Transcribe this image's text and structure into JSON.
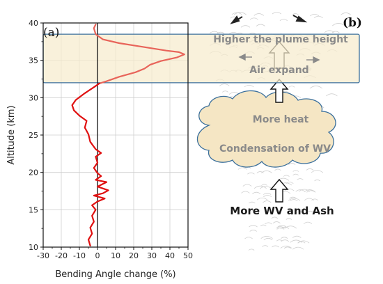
{
  "chart_data": {
    "type": "line",
    "panel_a_label": "(a)",
    "panel_b_label": "(b)",
    "xlabel": "Bending Angle change (%)",
    "ylabel": "Altitude (km)",
    "xlim": [
      -30,
      50
    ],
    "ylim": [
      10,
      40
    ],
    "xticks": [
      "-30",
      "-20",
      "-10",
      "0",
      "10",
      "20",
      "30",
      "40",
      "50"
    ],
    "yticks": [
      "10",
      "15",
      "20",
      "25",
      "30",
      "35",
      "40"
    ],
    "grid": true,
    "highlight_band_km": [
      32,
      38.5
    ],
    "series": [
      {
        "color": "#e8645a",
        "points": [
          [
            -1,
            39.8
          ],
          [
            -2,
            39.3
          ],
          [
            -1,
            38.5
          ],
          [
            3,
            37.8
          ],
          [
            12,
            37.3
          ],
          [
            25,
            36.8
          ],
          [
            38,
            36.3
          ],
          [
            45,
            36.1
          ],
          [
            48,
            35.8
          ],
          [
            44,
            35.4
          ],
          [
            35,
            34.9
          ],
          [
            29,
            34.4
          ],
          [
            26,
            33.9
          ],
          [
            21,
            33.4
          ],
          [
            12,
            32.8
          ],
          [
            5,
            32.2
          ],
          [
            1,
            31.9
          ]
        ]
      },
      {
        "color": "#e01010",
        "points": [
          [
            1,
            31.9
          ],
          [
            -2,
            31.4
          ],
          [
            -7,
            30.6
          ],
          [
            -12,
            29.7
          ],
          [
            -14,
            29.0
          ],
          [
            -13,
            28.3
          ],
          [
            -10,
            27.6
          ],
          [
            -6,
            26.9
          ],
          [
            -7,
            26.0
          ],
          [
            -5,
            25.1
          ],
          [
            -4,
            24.1
          ],
          [
            -1,
            23.1
          ],
          [
            2,
            22.6
          ],
          [
            -1,
            22.1
          ],
          [
            0,
            21.3
          ],
          [
            -2,
            20.6
          ],
          [
            0,
            19.9
          ],
          [
            2,
            19.5
          ],
          [
            -1,
            19.0
          ],
          [
            5,
            18.7
          ],
          [
            0,
            18.1
          ],
          [
            6,
            17.6
          ],
          [
            3,
            17.2
          ],
          [
            -2,
            16.9
          ],
          [
            4,
            16.5
          ],
          [
            0,
            16.1
          ],
          [
            -3,
            15.6
          ],
          [
            -1,
            15.0
          ],
          [
            -3,
            14.2
          ],
          [
            -2,
            13.4
          ],
          [
            -4,
            12.6
          ],
          [
            -3,
            11.8
          ],
          [
            -5,
            11.0
          ],
          [
            -4,
            10.2
          ]
        ]
      }
    ]
  },
  "schematic": {
    "labels": {
      "plume_height": "Higher the plume height",
      "air_expand": "Air expand",
      "more_heat": "More heat",
      "condensation": "Condensation of WV",
      "wv_ash": "More WV and Ash"
    },
    "colors": {
      "band_fill": "#f7eccd",
      "band_stroke": "#3a6f9c",
      "cloud_fill": "#f5e6c4",
      "cloud_stroke": "#3a6f9c"
    }
  }
}
